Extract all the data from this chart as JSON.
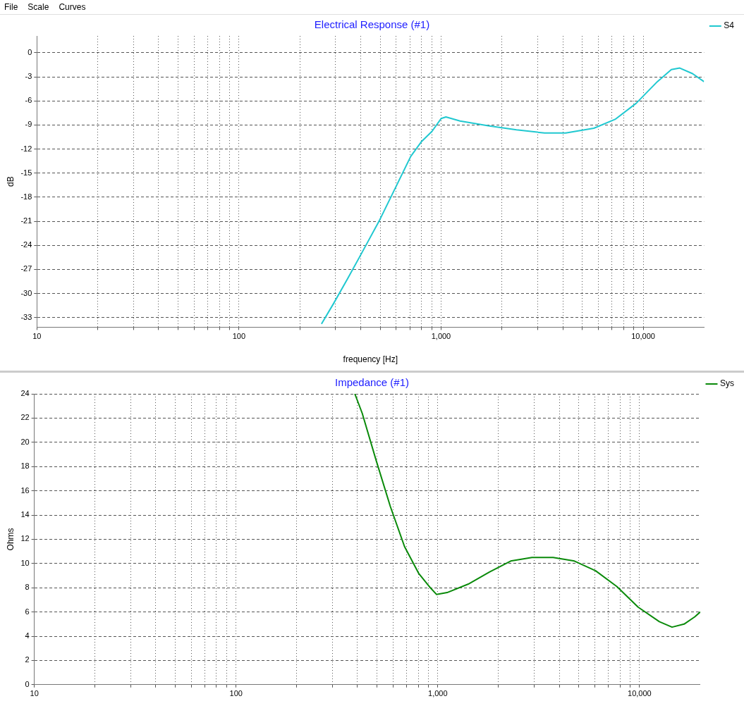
{
  "chart_data": [
    {
      "type": "line",
      "title": "Electrical Response (#1)",
      "xlabel": "frequency [Hz]",
      "ylabel": "dB",
      "annotations": [
        "File",
        "Scale",
        "Curves"
      ],
      "log": "x",
      "grid": true,
      "legend": "top right",
      "marker": "none",
      "xlim": [
        10,
        20000
      ],
      "ylim": [
        -34.2,
        2.1
      ],
      "xticks": [
        {
          "value": 10,
          "label": "10"
        },
        {
          "value": 20,
          "label": null
        },
        {
          "value": 30,
          "label": null
        },
        {
          "value": 40,
          "label": null
        },
        {
          "value": 50,
          "label": null
        },
        {
          "value": 60,
          "label": null
        },
        {
          "value": 70,
          "label": null
        },
        {
          "value": 80,
          "label": null
        },
        {
          "value": 90,
          "label": null
        },
        {
          "value": 100,
          "label": "100"
        },
        {
          "value": 200,
          "label": null
        },
        {
          "value": 300,
          "label": null
        },
        {
          "value": 400,
          "label": null
        },
        {
          "value": 500,
          "label": null
        },
        {
          "value": 600,
          "label": null
        },
        {
          "value": 700,
          "label": null
        },
        {
          "value": 800,
          "label": null
        },
        {
          "value": 900,
          "label": null
        },
        {
          "value": 1000,
          "label": "1,000"
        },
        {
          "value": 2000,
          "label": null
        },
        {
          "value": 3000,
          "label": null
        },
        {
          "value": 4000,
          "label": null
        },
        {
          "value": 5000,
          "label": null
        },
        {
          "value": 6000,
          "label": null
        },
        {
          "value": 7000,
          "label": null
        },
        {
          "value": 8000,
          "label": null
        },
        {
          "value": 9000,
          "label": null
        },
        {
          "value": 10000,
          "label": "10,000"
        }
      ],
      "yticks": [
        0,
        -3,
        -6,
        -9,
        -12,
        -15,
        -18,
        -21,
        -24,
        -27,
        -30,
        -33
      ],
      "series": [
        {
          "name": "S4",
          "color": "#20c8d0",
          "x": [
            256,
            293,
            344,
            404,
            493,
            603,
            708,
            798,
            901,
            1000,
            1057,
            1241,
            1710,
            2360,
            3250,
            4140,
            5700,
            7260,
            9230,
            11750,
            13780,
            15170,
            17540,
            20000
          ],
          "values": [
            -33.8,
            -31.3,
            -28.2,
            -25.0,
            -21.0,
            -16.5,
            -12.9,
            -11.1,
            -9.8,
            -8.2,
            -8.0,
            -8.5,
            -9.1,
            -9.6,
            -10.0,
            -10.0,
            -9.4,
            -8.3,
            -6.3,
            -3.6,
            -2.1,
            -1.9,
            -2.6,
            -3.6
          ]
        }
      ]
    },
    {
      "type": "line",
      "title": "Impedance (#1)",
      "ylabel": "Ohms",
      "log": "x",
      "grid": true,
      "legend": "top right",
      "marker": "none",
      "xlim": [
        10,
        20000
      ],
      "ylim": [
        0,
        24
      ],
      "xticks": [
        {
          "value": 10,
          "label": "10"
        },
        {
          "value": 20,
          "label": null
        },
        {
          "value": 30,
          "label": null
        },
        {
          "value": 40,
          "label": null
        },
        {
          "value": 50,
          "label": null
        },
        {
          "value": 60,
          "label": null
        },
        {
          "value": 70,
          "label": null
        },
        {
          "value": 80,
          "label": null
        },
        {
          "value": 90,
          "label": null
        },
        {
          "value": 100,
          "label": "100"
        },
        {
          "value": 200,
          "label": null
        },
        {
          "value": 300,
          "label": null
        },
        {
          "value": 400,
          "label": null
        },
        {
          "value": 500,
          "label": null
        },
        {
          "value": 600,
          "label": null
        },
        {
          "value": 700,
          "label": null
        },
        {
          "value": 800,
          "label": null
        },
        {
          "value": 900,
          "label": null
        },
        {
          "value": 1000,
          "label": "1,000"
        },
        {
          "value": 2000,
          "label": null
        },
        {
          "value": 3000,
          "label": null
        },
        {
          "value": 4000,
          "label": null
        },
        {
          "value": 5000,
          "label": null
        },
        {
          "value": 6000,
          "label": null
        },
        {
          "value": 7000,
          "label": null
        },
        {
          "value": 8000,
          "label": null
        },
        {
          "value": 9000,
          "label": null
        },
        {
          "value": 10000,
          "label": "10,000"
        }
      ],
      "yticks": [
        0,
        2,
        4,
        6,
        8,
        10,
        12,
        14,
        16,
        18,
        20,
        22,
        24
      ],
      "series": [
        {
          "name": "Sys",
          "color": "#0a8a0a",
          "x": [
            388,
            422,
            495,
            582,
            684,
            803,
            907,
            985,
            1112,
            1416,
            1804,
            2298,
            2928,
            3730,
            4755,
            6057,
            7720,
            9840,
            12540,
            14490,
            16630,
            18780,
            20000
          ],
          "values": [
            24,
            22.4,
            18.5,
            14.7,
            11.4,
            9.2,
            8.1,
            7.45,
            7.6,
            8.3,
            9.3,
            10.2,
            10.5,
            10.5,
            10.2,
            9.4,
            8.1,
            6.4,
            5.2,
            4.75,
            5.0,
            5.6,
            6.0
          ]
        }
      ]
    }
  ]
}
